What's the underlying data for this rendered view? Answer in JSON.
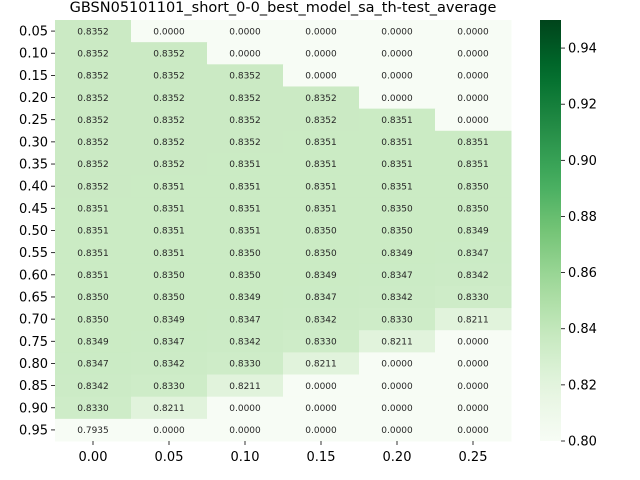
{
  "chart_data": {
    "type": "heatmap",
    "title": "GBSN05101101_short_0-0_best_model_sa_th-test_average",
    "xlabel": "",
    "ylabel": "",
    "x_categories": [
      "0.00",
      "0.05",
      "0.10",
      "0.15",
      "0.20",
      "0.25"
    ],
    "y_categories": [
      "0.05",
      "0.10",
      "0.15",
      "0.20",
      "0.25",
      "0.30",
      "0.35",
      "0.40",
      "0.45",
      "0.50",
      "0.55",
      "0.60",
      "0.65",
      "0.70",
      "0.75",
      "0.80",
      "0.85",
      "0.90",
      "0.95"
    ],
    "values": [
      [
        0.8352,
        0.0,
        0.0,
        0.0,
        0.0,
        0.0
      ],
      [
        0.8352,
        0.8352,
        0.0,
        0.0,
        0.0,
        0.0
      ],
      [
        0.8352,
        0.8352,
        0.8352,
        0.0,
        0.0,
        0.0
      ],
      [
        0.8352,
        0.8352,
        0.8352,
        0.8352,
        0.0,
        0.0
      ],
      [
        0.8352,
        0.8352,
        0.8352,
        0.8352,
        0.8351,
        0.0
      ],
      [
        0.8352,
        0.8352,
        0.8352,
        0.8351,
        0.8351,
        0.8351
      ],
      [
        0.8352,
        0.8352,
        0.8351,
        0.8351,
        0.8351,
        0.8351
      ],
      [
        0.8352,
        0.8351,
        0.8351,
        0.8351,
        0.8351,
        0.835
      ],
      [
        0.8351,
        0.8351,
        0.8351,
        0.8351,
        0.835,
        0.835
      ],
      [
        0.8351,
        0.8351,
        0.8351,
        0.835,
        0.835,
        0.8349
      ],
      [
        0.8351,
        0.8351,
        0.835,
        0.835,
        0.8349,
        0.8347
      ],
      [
        0.8351,
        0.835,
        0.835,
        0.8349,
        0.8347,
        0.8342
      ],
      [
        0.835,
        0.835,
        0.8349,
        0.8347,
        0.8342,
        0.833
      ],
      [
        0.835,
        0.8349,
        0.8347,
        0.8342,
        0.833,
        0.8211
      ],
      [
        0.8349,
        0.8347,
        0.8342,
        0.833,
        0.8211,
        0.0
      ],
      [
        0.8347,
        0.8342,
        0.833,
        0.8211,
        0.0,
        0.0
      ],
      [
        0.8342,
        0.833,
        0.8211,
        0.0,
        0.0,
        0.0
      ],
      [
        0.833,
        0.8211,
        0.0,
        0.0,
        0.0,
        0.0
      ],
      [
        0.7935,
        0.0,
        0.0,
        0.0,
        0.0,
        0.0
      ]
    ],
    "value_format_decimals": 4,
    "colormap": "Greens",
    "color_range": [
      0.8,
      0.95
    ],
    "colorbar_ticks": [
      "0.80",
      "0.82",
      "0.84",
      "0.86",
      "0.88",
      "0.90",
      "0.92",
      "0.94"
    ],
    "colorbar_tick_values": [
      0.8,
      0.82,
      0.84,
      0.86,
      0.88,
      0.9,
      0.92,
      0.94
    ],
    "legend_placement": "right",
    "grid": false
  }
}
